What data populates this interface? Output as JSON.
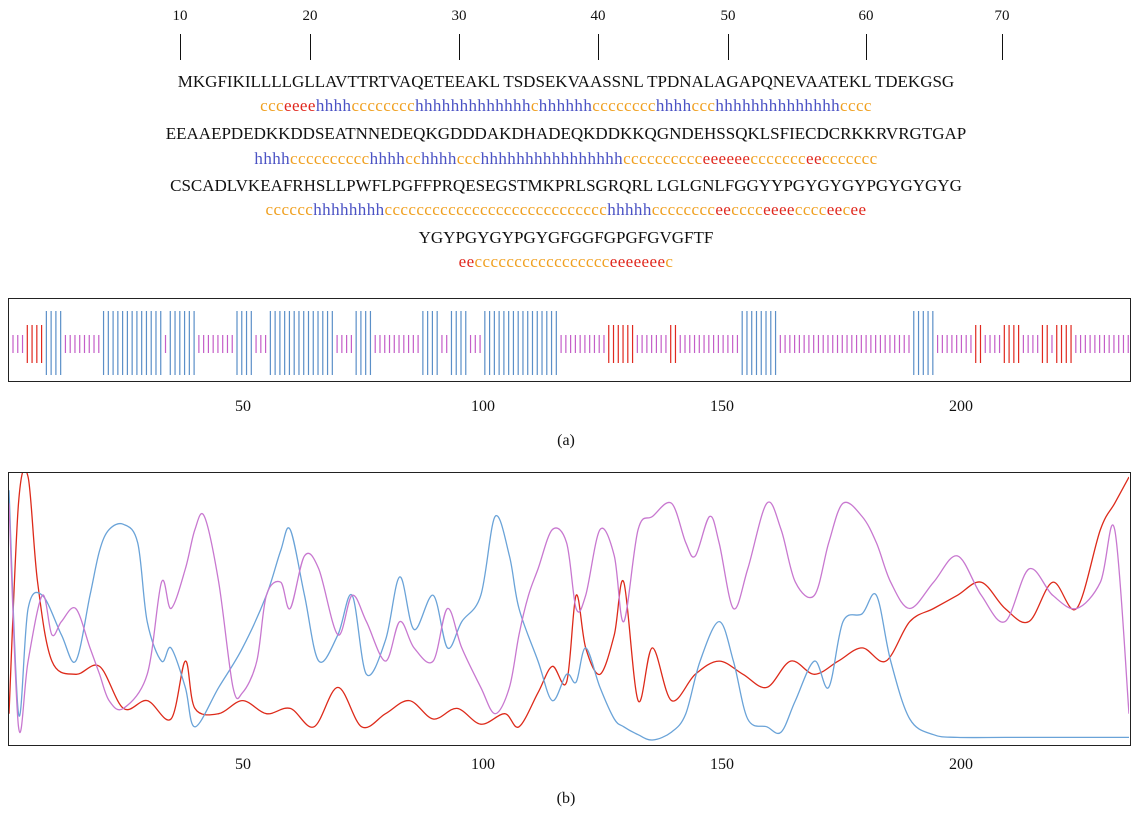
{
  "ruler": {
    "labels": [
      "10",
      "20",
      "30",
      "40",
      "50",
      "60",
      "70"
    ]
  },
  "sequence_block": [
    {
      "seq": "MKGFIKILLLLGLLAVTTRTVAQETEEAKL TSDSEKVAASSNL TPDNALAGAPQNEVAATEKL TDEKGSG",
      "ss": "ccceeeehhhhcccccccchhhhhhhhhhhhhchhhhhhcccccccchhhhccchhhhhhhhhhhhhhcccc"
    },
    {
      "seq": "EEAAEPDEDKKDDSEATNNEDEQKGDDDAKDHADEQKDDKKQGNDEHSSQKLSFIECDCRKKRVRGTGAP",
      "ss": "hhhhcccccccccchhhhcchhhhccchhhhhhhhhhhhhhhhcccccccccceeeeeeccccccceeccccccc"
    },
    {
      "seq": "CSCADLVKEAFRHSLLPWFLPGFFPRQESEGSTMKPRLSGRQRL LGLGNLFGGYYPGYGYGYPGYGYGYG",
      "ss": "cccccchhhhhhhhcccccccccccccccccccccccccccchhhhhcccccccceecccceeeecccceecee"
    },
    {
      "seq": "YGYPGYGYPGYGFGGFGPGFGVGFTF",
      "ss": "eeccccccccccccccccceeeeeeec"
    }
  ],
  "panel_a": {
    "x_ticks": [
      "50",
      "100",
      "150",
      "200"
    ],
    "caption": "(a)",
    "colors": {
      "helix": "#5b8fc8",
      "coil": "#c45ec8",
      "strand": "#e0281e"
    }
  },
  "panel_b": {
    "x_ticks": [
      "50",
      "100",
      "150",
      "200"
    ],
    "caption": "(b)",
    "colors": {
      "helix": "#6aa3d8",
      "coil": "#c878d0",
      "strand": "#dd2a1a"
    }
  },
  "chart_data": {
    "type": "line",
    "x_range": [
      1,
      236
    ],
    "y_range": [
      0,
      1
    ],
    "series": [
      {
        "color": "#dd2a1a",
        "x": [
          1,
          3,
          5,
          7,
          10,
          15,
          20,
          25,
          30,
          35,
          38,
          40,
          45,
          50,
          55,
          60,
          65,
          70,
          75,
          80,
          85,
          90,
          95,
          100,
          105,
          108,
          112,
          115,
          118,
          120,
          122,
          125,
          128,
          130,
          133,
          136,
          140,
          145,
          150,
          155,
          160,
          165,
          170,
          175,
          180,
          185,
          190,
          195,
          200,
          205,
          210,
          215,
          220,
          225,
          230,
          233,
          236
        ],
        "y": [
          0.1,
          0.9,
          1.0,
          0.6,
          0.3,
          0.25,
          0.28,
          0.12,
          0.15,
          0.08,
          0.3,
          0.12,
          0.1,
          0.15,
          0.1,
          0.12,
          0.05,
          0.2,
          0.05,
          0.1,
          0.15,
          0.08,
          0.12,
          0.06,
          0.1,
          0.05,
          0.18,
          0.28,
          0.22,
          0.55,
          0.35,
          0.25,
          0.4,
          0.6,
          0.15,
          0.35,
          0.15,
          0.25,
          0.3,
          0.25,
          0.2,
          0.3,
          0.25,
          0.3,
          0.35,
          0.3,
          0.45,
          0.5,
          0.55,
          0.6,
          0.5,
          0.45,
          0.6,
          0.5,
          0.8,
          0.9,
          1.0
        ]
      },
      {
        "color": "#6aa3d8",
        "x": [
          1,
          3,
          5,
          8,
          12,
          15,
          18,
          20,
          22,
          25,
          28,
          30,
          33,
          35,
          38,
          40,
          45,
          50,
          55,
          58,
          60,
          63,
          66,
          70,
          73,
          76,
          80,
          83,
          86,
          90,
          93,
          96,
          100,
          103,
          106,
          108,
          112,
          115,
          118,
          120,
          122,
          125,
          128,
          130,
          133,
          136,
          140,
          143,
          146,
          150,
          153,
          156,
          160,
          163,
          166,
          170,
          173,
          176,
          180,
          183,
          186,
          190,
          195,
          200,
          210,
          220,
          230,
          236
        ],
        "y": [
          0.95,
          0.1,
          0.5,
          0.55,
          0.4,
          0.3,
          0.55,
          0.72,
          0.8,
          0.82,
          0.75,
          0.45,
          0.3,
          0.35,
          0.2,
          0.05,
          0.2,
          0.35,
          0.55,
          0.72,
          0.8,
          0.55,
          0.3,
          0.4,
          0.55,
          0.25,
          0.38,
          0.62,
          0.42,
          0.55,
          0.35,
          0.45,
          0.55,
          0.85,
          0.7,
          0.5,
          0.3,
          0.15,
          0.25,
          0.22,
          0.35,
          0.2,
          0.08,
          0.05,
          0.02,
          0.0,
          0.03,
          0.1,
          0.3,
          0.45,
          0.3,
          0.08,
          0.05,
          0.03,
          0.15,
          0.3,
          0.2,
          0.45,
          0.48,
          0.55,
          0.3,
          0.08,
          0.02,
          0.01,
          0.01,
          0.01,
          0.01,
          0.01
        ]
      },
      {
        "color": "#c878d0",
        "x": [
          1,
          3,
          5,
          8,
          10,
          12,
          15,
          18,
          20,
          22,
          25,
          30,
          33,
          35,
          38,
          40,
          42,
          45,
          48,
          50,
          53,
          55,
          58,
          60,
          63,
          66,
          70,
          73,
          76,
          80,
          83,
          86,
          90,
          93,
          96,
          100,
          103,
          106,
          108,
          110,
          112,
          115,
          118,
          120,
          122,
          125,
          128,
          130,
          133,
          136,
          140,
          143,
          145,
          148,
          150,
          153,
          156,
          160,
          163,
          166,
          170,
          173,
          176,
          180,
          183,
          186,
          190,
          195,
          200,
          205,
          210,
          215,
          220,
          225,
          230,
          233,
          236
        ],
        "y": [
          0.9,
          0.05,
          0.3,
          0.55,
          0.4,
          0.45,
          0.5,
          0.35,
          0.25,
          0.15,
          0.12,
          0.25,
          0.6,
          0.5,
          0.65,
          0.8,
          0.85,
          0.6,
          0.2,
          0.18,
          0.3,
          0.55,
          0.6,
          0.5,
          0.7,
          0.65,
          0.4,
          0.55,
          0.45,
          0.3,
          0.45,
          0.35,
          0.3,
          0.5,
          0.35,
          0.2,
          0.1,
          0.2,
          0.4,
          0.55,
          0.65,
          0.8,
          0.75,
          0.5,
          0.55,
          0.8,
          0.7,
          0.45,
          0.8,
          0.85,
          0.9,
          0.75,
          0.7,
          0.85,
          0.75,
          0.5,
          0.65,
          0.9,
          0.8,
          0.6,
          0.55,
          0.75,
          0.9,
          0.85,
          0.75,
          0.6,
          0.5,
          0.6,
          0.7,
          0.55,
          0.45,
          0.65,
          0.55,
          0.5,
          0.6,
          0.8,
          0.1
        ]
      }
    ]
  }
}
